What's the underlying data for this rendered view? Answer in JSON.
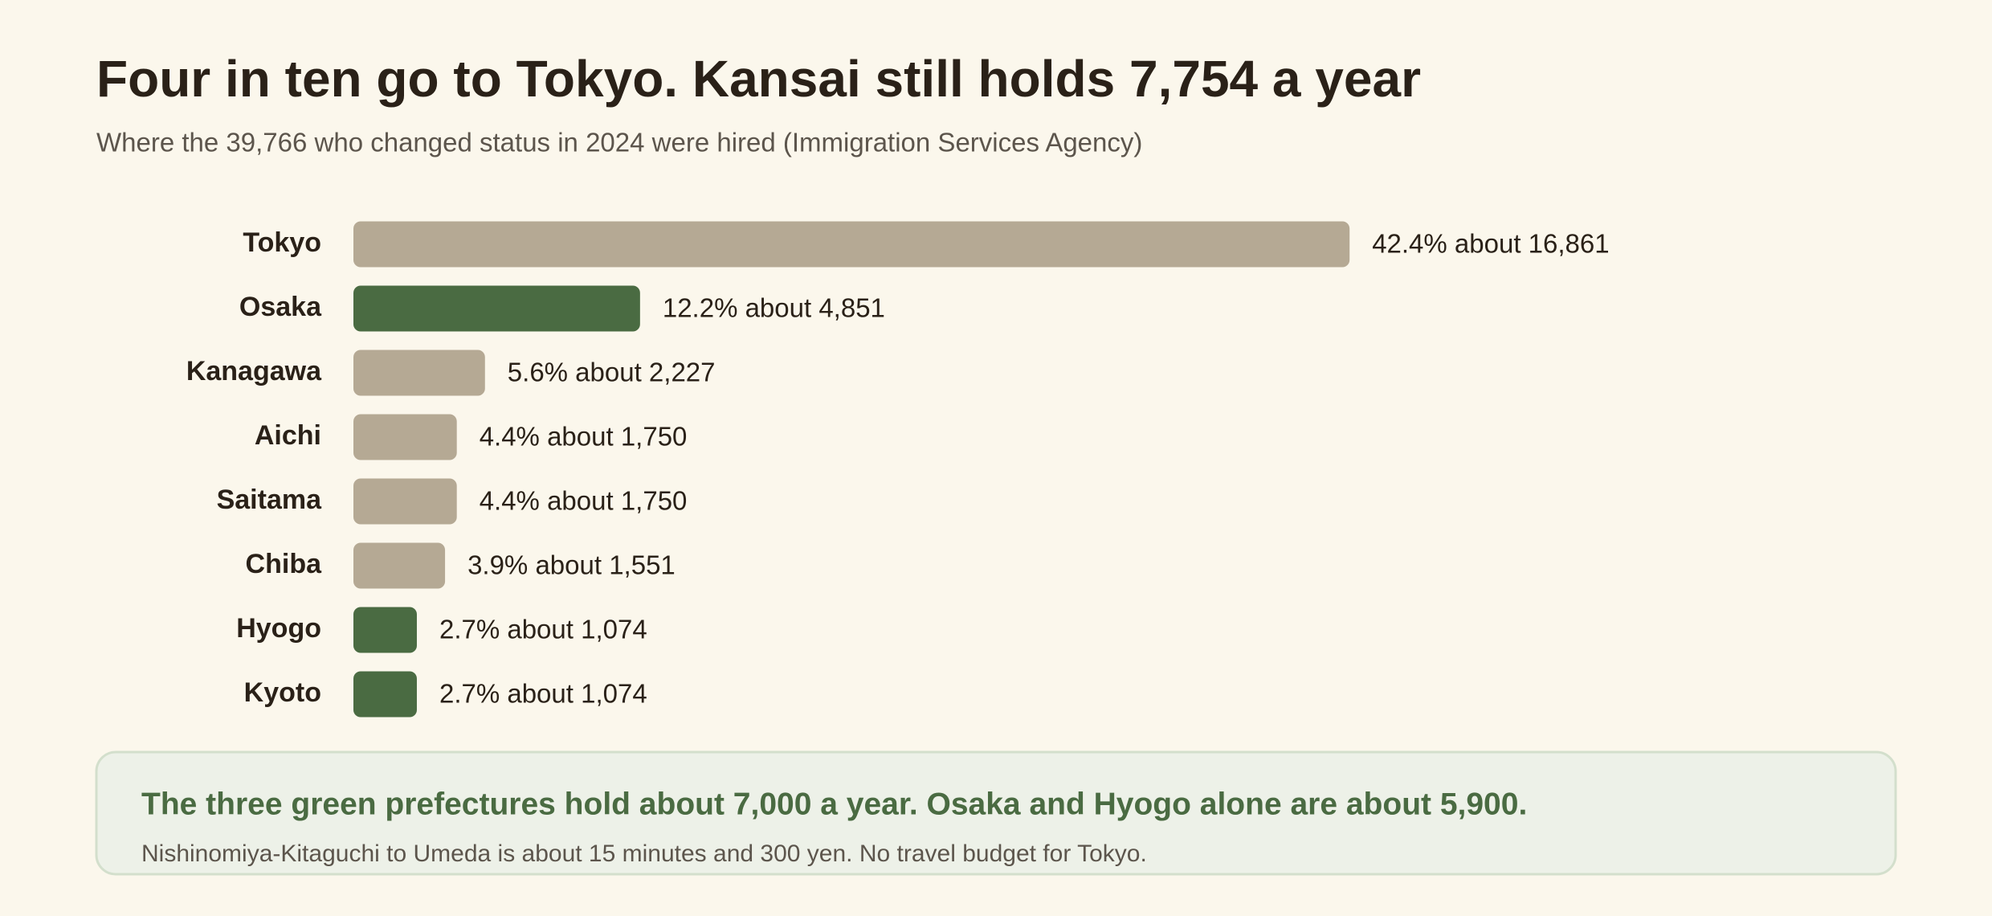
{
  "chart_data": {
    "type": "bar",
    "orientation": "horizontal",
    "title": "Four in ten go to Tokyo. Kansai still holds 7,754 a year",
    "subtitle": "Where the 39,766 who changed status in 2024 were hired (Immigration Services Agency)",
    "categories": [
      "Tokyo",
      "Osaka",
      "Kanagawa",
      "Aichi",
      "Saitama",
      "Chiba",
      "Hyogo",
      "Kyoto"
    ],
    "values": [
      42.4,
      12.2,
      5.6,
      4.4,
      4.4,
      3.9,
      2.7,
      2.7
    ],
    "value_labels": [
      "42.4% about 16,861",
      "12.2% about 4,851",
      "5.6% about 2,227",
      "4.4% about 1,750",
      "4.4% about 1,750",
      "3.9% about 1,551",
      "2.7% about 1,074",
      "2.7% about 1,074"
    ],
    "colors": [
      "#b5a994",
      "#4a6b42",
      "#b5a994",
      "#b5a994",
      "#b5a994",
      "#b5a994",
      "#4a6b42",
      "#4a6b42"
    ]
  },
  "callout": {
    "heading": "The three green prefectures hold about 7,000 a year. Osaka and Hyogo alone are about 5,900.",
    "note": "Nishinomiya-Kitaguchi to Umeda is about 15 minutes and 300 yen. No travel budget for Tokyo."
  }
}
